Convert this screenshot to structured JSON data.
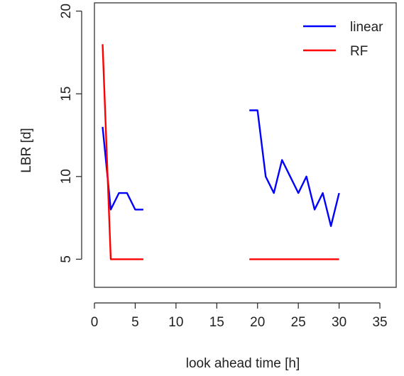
{
  "chart_data": {
    "type": "line",
    "title": "",
    "xlabel": "look ahead time [h]",
    "ylabel": "LBR [d]",
    "xlim": [
      0,
      37
    ],
    "ylim": [
      3.3,
      20.5
    ],
    "xticks": [
      0,
      5,
      10,
      15,
      20,
      25,
      30,
      35
    ],
    "yticks": [
      5,
      10,
      15,
      20
    ],
    "grid": false,
    "legend_position": "top-right",
    "series": [
      {
        "name": "linear",
        "color": "#0000ff",
        "segments": [
          [
            [
              1,
              13
            ],
            [
              2,
              8
            ],
            [
              3,
              9
            ],
            [
              4,
              9
            ],
            [
              5,
              8
            ],
            [
              6,
              8
            ]
          ],
          [
            [
              19,
              14
            ],
            [
              20,
              14
            ],
            [
              21,
              10
            ],
            [
              22,
              9
            ],
            [
              23,
              11
            ],
            [
              24,
              10
            ],
            [
              25,
              9
            ],
            [
              26,
              10
            ],
            [
              27,
              8
            ],
            [
              28,
              9
            ],
            [
              29,
              7
            ],
            [
              30,
              9
            ]
          ]
        ]
      },
      {
        "name": "RF",
        "color": "#ff0000",
        "segments": [
          [
            [
              1,
              18
            ],
            [
              2,
              5
            ],
            [
              3,
              5
            ],
            [
              4,
              5
            ],
            [
              5,
              5
            ],
            [
              6,
              5
            ]
          ],
          [
            [
              19,
              5
            ],
            [
              20,
              5
            ],
            [
              21,
              5
            ],
            [
              22,
              5
            ],
            [
              23,
              5
            ],
            [
              24,
              5
            ],
            [
              25,
              5
            ],
            [
              26,
              5
            ],
            [
              27,
              5
            ],
            [
              28,
              5
            ],
            [
              29,
              5
            ],
            [
              30,
              5
            ]
          ]
        ]
      }
    ]
  }
}
